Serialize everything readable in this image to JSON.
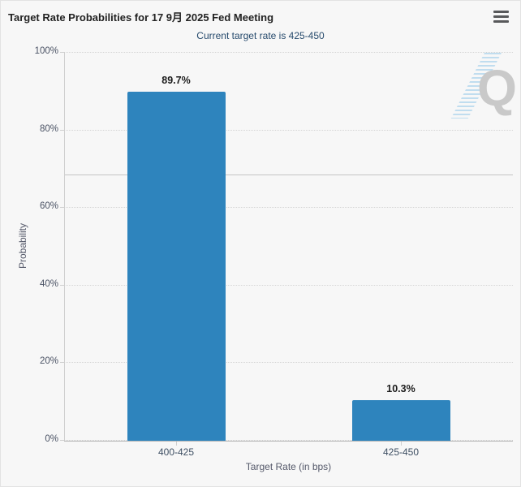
{
  "header": {
    "title": "Target Rate Probabilities for 17 9月 2025 Fed Meeting",
    "subtitle": "Current target rate is 425-450"
  },
  "watermark": {
    "letter": "Q",
    "name": "QuikStrike logo"
  },
  "chart_data": {
    "type": "bar",
    "title": "Target Rate Probabilities for 17 9月 2025 Fed Meeting",
    "subtitle": "Current target rate is 425-450",
    "categories": [
      "400-425",
      "425-450"
    ],
    "values": [
      89.7,
      10.3
    ],
    "data_labels": [
      "89.7%",
      "10.3%"
    ],
    "xlabel": "Target Rate (in bps)",
    "ylabel": "Probability",
    "ylim": [
      0,
      100
    ],
    "yticks": [
      0,
      20,
      40,
      60,
      80,
      100
    ],
    "ytick_labels": [
      "0%",
      "20%",
      "40%",
      "60%",
      "80%",
      "100%"
    ],
    "grid": "dotted-horizontal",
    "legend_position": "none",
    "plot_line": {
      "value": 68.4,
      "style": "solid"
    },
    "bar_color": "#2e84bd"
  },
  "colors": {
    "background": "#f7f7f7",
    "bar": "#2e84bd",
    "subtitle_text": "#274b6d",
    "axis_label": "#3e4f63",
    "watermark_gray": "#c9c9c9",
    "watermark_blue": "#aed4ec"
  }
}
